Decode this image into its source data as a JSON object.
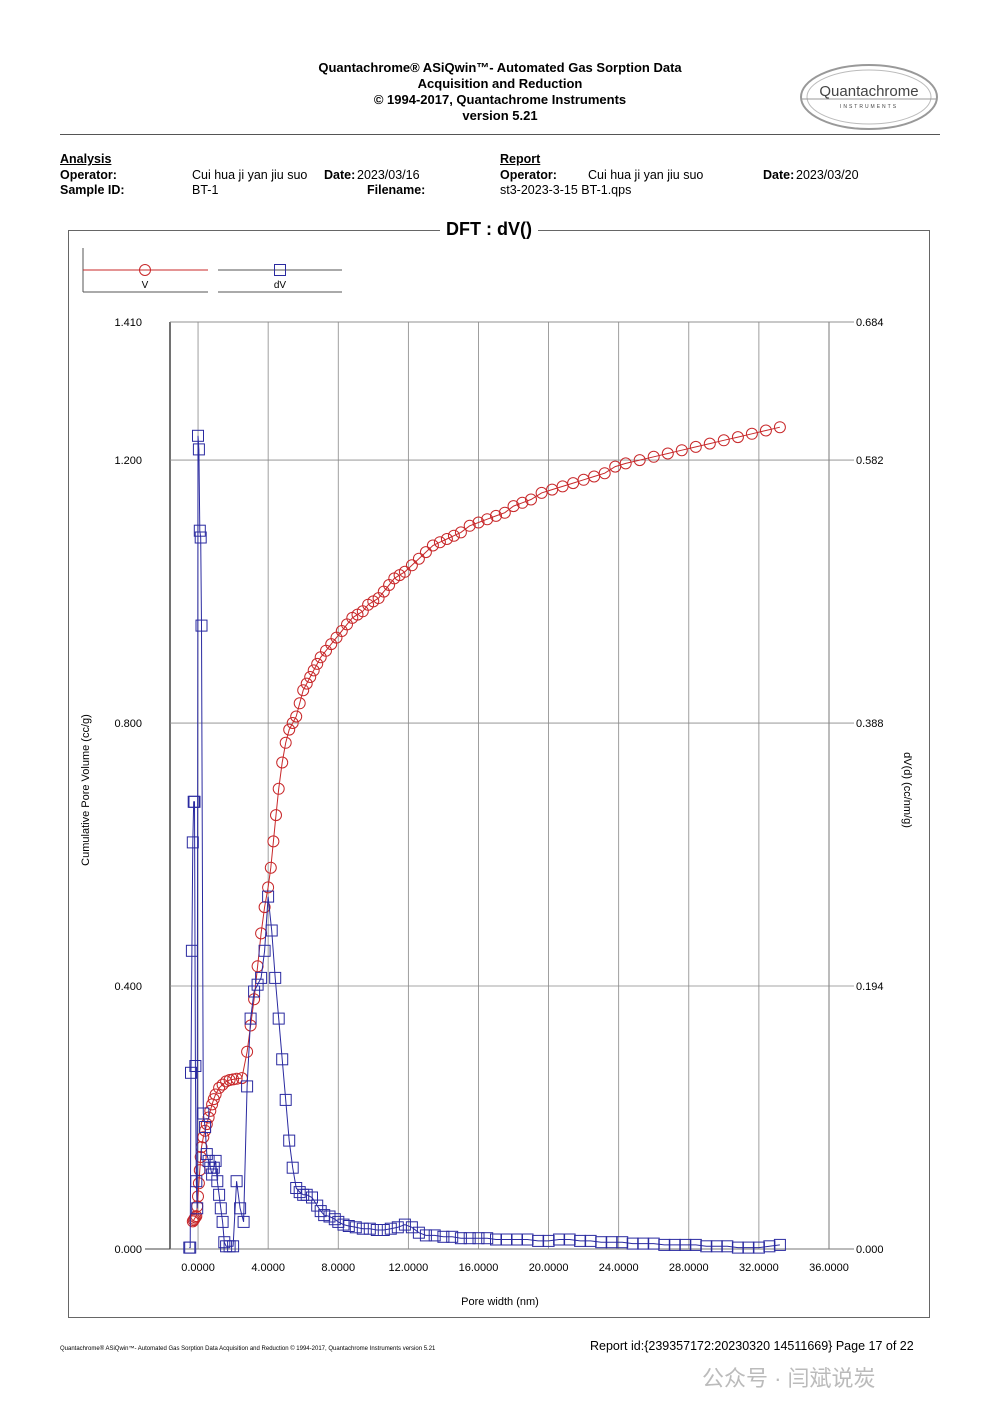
{
  "header": {
    "line1": "Quantachrome® ASiQwin™- Automated Gas Sorption Data",
    "line2": "Acquisition and Reduction",
    "line3": "© 1994-2017, Quantachrome Instruments",
    "line4": "version 5.21",
    "logo_text": "Quantachrome",
    "logo_sub": "INSTRUMENTS"
  },
  "analysis": {
    "heading": "Analysis",
    "operator_label": "Operator:",
    "operator": "Cui hua ji yan jiu suo",
    "date_label": "Date:",
    "date": "2023/03/16",
    "sample_label": "Sample ID:",
    "sample": "BT-1",
    "filename_label": "Filename:"
  },
  "report": {
    "heading": "Report",
    "operator_label": "Operator:",
    "operator": "Cui hua ji yan jiu suo",
    "date_label": "Date:",
    "date": "2023/03/20",
    "filename": "st3-2023-3-15  BT-1.qps"
  },
  "chart_data": {
    "type": "scatter",
    "title": "DFT :   dV()",
    "xlabel": "Pore width (nm)",
    "ylabel_left": "Cumulative Pore Volume (cc/g)",
    "ylabel_right": "dV(d) (cc/nm/g)",
    "xlim": [
      -1.6,
      36.0
    ],
    "ylim_left": [
      0,
      1.41
    ],
    "ylim_right": [
      0,
      0.684
    ],
    "x_ticks": [
      "0.0000",
      "4.0000",
      "8.0000",
      "12.0000",
      "16.0000",
      "20.0000",
      "24.0000",
      "28.0000",
      "32.0000",
      "36.0000"
    ],
    "y_ticks_left": [
      "0.000",
      "0.400",
      "0.800",
      "1.200",
      "1.410"
    ],
    "y_ticks_right": [
      "0.000",
      "0.194",
      "0.388",
      "0.582",
      "0.684"
    ],
    "grid": true,
    "legend_position": "top-left",
    "series": [
      {
        "name": "V",
        "axis": "left",
        "marker": "circle",
        "color": "#c8282a",
        "x": [
          -0.3,
          -0.25,
          -0.2,
          -0.15,
          -0.1,
          -0.05,
          0.0,
          0.05,
          0.1,
          0.15,
          0.2,
          0.3,
          0.4,
          0.5,
          0.6,
          0.7,
          0.8,
          0.9,
          1.0,
          1.2,
          1.4,
          1.6,
          1.8,
          2.0,
          2.2,
          2.5,
          2.8,
          3.0,
          3.2,
          3.4,
          3.6,
          3.8,
          4.0,
          4.15,
          4.3,
          4.45,
          4.6,
          4.8,
          5.0,
          5.2,
          5.4,
          5.6,
          5.8,
          6.0,
          6.2,
          6.4,
          6.6,
          6.8,
          7.0,
          7.3,
          7.6,
          7.9,
          8.2,
          8.5,
          8.8,
          9.1,
          9.4,
          9.7,
          10.0,
          10.3,
          10.6,
          10.9,
          11.2,
          11.5,
          11.8,
          12.2,
          12.6,
          13.0,
          13.4,
          13.8,
          14.2,
          14.6,
          15.0,
          15.5,
          16.0,
          16.5,
          17.0,
          17.5,
          18.0,
          18.5,
          19.0,
          19.6,
          20.2,
          20.8,
          21.4,
          22.0,
          22.6,
          23.2,
          23.8,
          24.4,
          25.2,
          26.0,
          26.8,
          27.6,
          28.4,
          29.2,
          30.0,
          30.8,
          31.6,
          32.4,
          33.2
        ],
        "y": [
          0.042,
          0.044,
          0.046,
          0.048,
          0.05,
          0.065,
          0.08,
          0.1,
          0.12,
          0.14,
          0.155,
          0.17,
          0.18,
          0.19,
          0.2,
          0.21,
          0.22,
          0.228,
          0.235,
          0.245,
          0.25,
          0.255,
          0.257,
          0.258,
          0.259,
          0.26,
          0.3,
          0.34,
          0.38,
          0.43,
          0.48,
          0.52,
          0.55,
          0.58,
          0.62,
          0.66,
          0.7,
          0.74,
          0.77,
          0.79,
          0.8,
          0.81,
          0.83,
          0.85,
          0.86,
          0.87,
          0.88,
          0.89,
          0.9,
          0.91,
          0.92,
          0.93,
          0.94,
          0.95,
          0.96,
          0.965,
          0.97,
          0.98,
          0.985,
          0.99,
          1.0,
          1.01,
          1.02,
          1.025,
          1.03,
          1.04,
          1.05,
          1.06,
          1.07,
          1.075,
          1.08,
          1.085,
          1.09,
          1.1,
          1.105,
          1.11,
          1.115,
          1.12,
          1.13,
          1.135,
          1.14,
          1.15,
          1.155,
          1.16,
          1.165,
          1.17,
          1.175,
          1.18,
          1.19,
          1.195,
          1.2,
          1.205,
          1.21,
          1.215,
          1.22,
          1.225,
          1.23,
          1.235,
          1.24,
          1.245,
          1.25
        ]
      },
      {
        "name": "dV",
        "axis": "right",
        "marker": "square",
        "color": "#2a2aa0",
        "x": [
          -0.5,
          -0.45,
          -0.4,
          -0.35,
          -0.3,
          -0.25,
          -0.2,
          -0.15,
          -0.1,
          -0.05,
          0.0,
          0.05,
          0.1,
          0.15,
          0.2,
          0.3,
          0.4,
          0.5,
          0.6,
          0.7,
          0.8,
          0.9,
          1.0,
          1.1,
          1.2,
          1.3,
          1.4,
          1.5,
          1.6,
          1.8,
          2.0,
          2.2,
          2.4,
          2.6,
          2.8,
          3.0,
          3.2,
          3.4,
          3.6,
          3.8,
          4.0,
          4.2,
          4.4,
          4.6,
          4.8,
          5.0,
          5.2,
          5.4,
          5.6,
          5.8,
          6.0,
          6.2,
          6.5,
          6.8,
          7.0,
          7.2,
          7.5,
          7.8,
          8.0,
          8.3,
          8.6,
          9.0,
          9.4,
          9.8,
          10.2,
          10.6,
          11.0,
          11.4,
          11.8,
          12.2,
          12.6,
          13.0,
          13.5,
          14.0,
          14.5,
          15.0,
          15.5,
          16.0,
          16.5,
          17.0,
          17.6,
          18.2,
          18.8,
          19.4,
          20.0,
          20.6,
          21.2,
          21.8,
          22.4,
          23.0,
          23.6,
          24.2,
          24.8,
          25.4,
          26.0,
          26.6,
          27.2,
          27.8,
          28.4,
          29.0,
          29.6,
          30.2,
          30.8,
          31.4,
          32.0,
          32.6,
          33.2
        ],
        "y": [
          0.001,
          0.001,
          0.13,
          0.22,
          0.3,
          0.33,
          0.33,
          0.135,
          0.05,
          0.03,
          0.6,
          0.59,
          0.53,
          0.525,
          0.46,
          0.1,
          0.09,
          0.07,
          0.065,
          0.06,
          0.055,
          0.06,
          0.065,
          0.05,
          0.04,
          0.03,
          0.02,
          0.005,
          0.002,
          0.002,
          0.002,
          0.05,
          0.03,
          0.02,
          0.12,
          0.17,
          0.19,
          0.195,
          0.2,
          0.22,
          0.26,
          0.235,
          0.2,
          0.17,
          0.14,
          0.11,
          0.08,
          0.06,
          0.045,
          0.042,
          0.04,
          0.04,
          0.038,
          0.032,
          0.028,
          0.025,
          0.024,
          0.022,
          0.02,
          0.018,
          0.017,
          0.016,
          0.015,
          0.015,
          0.014,
          0.014,
          0.015,
          0.016,
          0.018,
          0.016,
          0.012,
          0.01,
          0.01,
          0.009,
          0.009,
          0.008,
          0.008,
          0.008,
          0.008,
          0.007,
          0.007,
          0.007,
          0.007,
          0.006,
          0.006,
          0.007,
          0.007,
          0.006,
          0.006,
          0.005,
          0.005,
          0.005,
          0.004,
          0.004,
          0.004,
          0.003,
          0.003,
          0.003,
          0.003,
          0.002,
          0.002,
          0.002,
          0.001,
          0.001,
          0.001,
          0.002,
          0.003
        ]
      }
    ]
  },
  "footer": {
    "small": "Quantachrome® ASiQwin™- Automated Gas Sorption Data Acquisition and Reduction © 1994-2017, Quantachrome Instruments version 5.21",
    "report_id": "Report id:{239357172:20230320 14511669} Page 17 of 22",
    "watermark": "公众号 · 闫斌说炭"
  },
  "colors": {
    "v_series": "#c8282a",
    "dv_series": "#2a2aa0",
    "grid": "#888888"
  }
}
